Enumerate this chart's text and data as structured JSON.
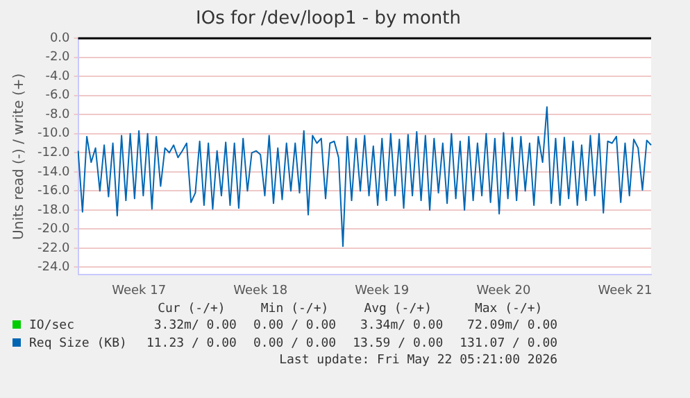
{
  "chart_data": {
    "type": "line",
    "title": "IOs for /dev/loop1 - by month",
    "ylabel": "Units read (-) / write (+)",
    "categories": [
      null,
      null,
      null,
      null,
      null,
      null,
      null,
      null,
      null,
      null,
      null,
      null,
      null,
      null,
      "Week 17",
      null,
      null,
      null,
      null,
      null,
      null,
      null,
      null,
      null,
      null,
      null,
      null,
      null,
      null,
      null,
      null,
      null,
      null,
      null,
      null,
      null,
      null,
      null,
      null,
      null,
      null,
      null,
      "Week 18",
      null,
      null,
      null,
      null,
      null,
      null,
      null,
      null,
      null,
      null,
      null,
      null,
      null,
      null,
      null,
      null,
      null,
      null,
      null,
      null,
      null,
      null,
      null,
      null,
      null,
      null,
      null,
      "Week 19",
      null,
      null,
      null,
      null,
      null,
      null,
      null,
      null,
      null,
      null,
      null,
      null,
      null,
      null,
      null,
      null,
      null,
      null,
      null,
      null,
      null,
      null,
      null,
      null,
      null,
      null,
      null,
      "Week 20",
      null,
      null,
      null,
      null,
      null,
      null,
      null,
      null,
      null,
      null,
      null,
      null,
      null,
      null,
      null,
      null,
      null,
      null,
      null,
      null,
      null,
      null,
      null,
      null,
      null,
      null,
      null,
      "Week 21",
      null,
      null,
      null,
      null,
      null,
      null
    ],
    "series": [
      {
        "name": "IO/sec",
        "color": "#00cc00",
        "values": [
          null,
          null,
          null,
          null,
          null,
          null,
          null,
          null,
          null,
          null,
          null,
          null,
          null,
          null,
          null,
          null,
          null,
          null,
          null,
          null,
          null,
          null,
          null,
          null,
          null,
          null,
          null,
          null,
          null,
          null,
          null,
          null,
          null,
          null,
          null,
          null,
          null,
          null,
          null,
          null,
          null,
          null,
          null,
          null,
          null,
          null,
          null,
          null,
          null,
          null,
          null,
          null,
          null,
          null,
          null,
          null,
          null,
          null,
          null,
          null,
          null,
          null,
          null,
          null,
          null,
          null,
          null,
          null,
          null,
          null,
          null,
          null,
          null,
          null,
          null,
          null,
          null,
          null,
          null,
          null,
          null,
          null,
          null,
          null,
          null,
          null,
          null,
          null,
          null,
          null,
          null,
          null,
          null,
          null,
          null,
          null,
          null,
          null,
          null,
          null,
          null,
          null,
          null,
          null,
          null,
          null,
          null,
          null,
          null,
          null,
          null,
          null,
          null,
          null,
          null,
          null,
          null,
          null,
          null,
          null,
          null,
          null,
          null,
          null,
          null,
          null,
          null,
          null,
          null,
          null,
          null,
          null,
          null
        ]
      },
      {
        "name": "Req Size (KB)",
        "color": "#0066b3",
        "values": [
          -11.8,
          -18.2,
          -10.3,
          -13.0,
          -11.5,
          -16.0,
          -11.2,
          -16.6,
          -11.0,
          -18.6,
          -10.2,
          -17.0,
          -10.0,
          -16.8,
          -9.7,
          -16.5,
          -10.0,
          -17.9,
          -10.3,
          -15.5,
          -11.5,
          -12.0,
          -11.2,
          -12.5,
          -11.8,
          -11.0,
          -17.2,
          -16.2,
          -10.8,
          -17.5,
          -11.0,
          -17.9,
          -11.8,
          -16.5,
          -10.9,
          -17.5,
          -11.0,
          -17.8,
          -10.5,
          -16.0,
          -12.0,
          -11.8,
          -12.2,
          -16.5,
          -10.2,
          -17.3,
          -11.5,
          -16.9,
          -11.0,
          -16.0,
          -11.0,
          -16.2,
          -9.7,
          -18.5,
          -10.2,
          -11.0,
          -10.5,
          -16.8,
          -11.0,
          -10.8,
          -12.5,
          -21.8,
          -10.3,
          -17.0,
          -10.5,
          -16.0,
          -10.2,
          -16.5,
          -11.3,
          -17.5,
          -10.5,
          -17.0,
          -10.0,
          -16.5,
          -10.6,
          -17.8,
          -10.1,
          -16.5,
          -9.8,
          -17.0,
          -10.2,
          -18.0,
          -10.5,
          -16.2,
          -11.0,
          -17.3,
          -10.0,
          -16.8,
          -10.8,
          -18.0,
          -10.3,
          -17.0,
          -11.0,
          -16.5,
          -10.0,
          -17.2,
          -10.5,
          -18.4,
          -9.9,
          -16.8,
          -10.4,
          -17.0,
          -10.3,
          -16.0,
          -11.0,
          -17.5,
          -10.3,
          -13.0,
          -7.2,
          -17.3,
          -10.5,
          -17.5,
          -10.4,
          -16.8,
          -10.8,
          -17.5,
          -11.2,
          -17.0,
          -10.2,
          -16.5,
          -10.0,
          -18.3,
          -10.8,
          -11.0,
          -10.3,
          -17.2,
          -11.0,
          -16.5,
          -10.6,
          -11.5,
          -15.9,
          -10.7,
          -11.2
        ]
      }
    ],
    "ylim": [
      -24.8,
      0
    ],
    "yticks": [
      {
        "value": 0,
        "label": "0.0"
      },
      {
        "value": -2,
        "label": "-2.0"
      },
      {
        "value": -4,
        "label": "-4.0"
      },
      {
        "value": -6,
        "label": "-6.0"
      },
      {
        "value": -8,
        "label": "-8.0"
      },
      {
        "value": -10,
        "label": "-10.0"
      },
      {
        "value": -12,
        "label": "-12.0"
      },
      {
        "value": -14,
        "label": "-14.0"
      },
      {
        "value": -16,
        "label": "-16.0"
      },
      {
        "value": -18,
        "label": "-18.0"
      },
      {
        "value": -20,
        "label": "-20.0"
      },
      {
        "value": -22,
        "label": "-22.0"
      },
      {
        "value": -24,
        "label": "-24.0"
      }
    ],
    "ref_lines": [
      {
        "axis": "y",
        "value": 0,
        "color": "#000000"
      }
    ],
    "grid": "y",
    "legend": "bottom",
    "marker": "none",
    "line_style": "solid",
    "annotations": [
      "Cur (-/+)",
      "Min (-/+)",
      "Avg (-/+)",
      "Max (-/+)",
      "3.32m/ 0.00",
      "0.00 / 0.00",
      "3.34m/ 0.00",
      "72.09m/ 0.00",
      "11.23 / 0.00",
      "0.00 / 0.00",
      "13.59 / 0.00",
      "131.07 / 0.00",
      "Last update: Fri May 22 05:21:00 2026"
    ]
  }
}
